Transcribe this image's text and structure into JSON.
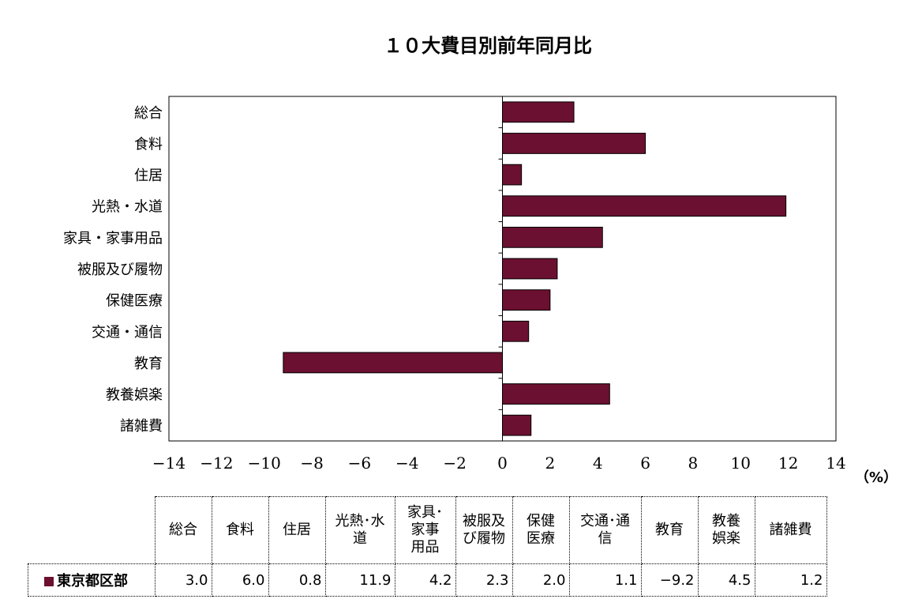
{
  "chart_data": {
    "type": "bar",
    "orientation": "horizontal",
    "title": "１０大費目別前年同月比",
    "unit": "（%）",
    "categories": [
      "総合",
      "食料",
      "住居",
      "光熱・水道",
      "家具・家事用品",
      "被服及び履物",
      "保健医療",
      "交通・通信",
      "教育",
      "教養娯楽",
      "諸雑費"
    ],
    "series": [
      {
        "name": "東京都区部",
        "values": [
          3.0,
          6.0,
          0.8,
          11.9,
          4.2,
          2.3,
          2.0,
          1.1,
          -9.2,
          4.5,
          1.2
        ]
      }
    ],
    "xlim": [
      -14,
      14
    ],
    "x_ticks": [
      "−14",
      "−12",
      "−10",
      "−8",
      "−6",
      "−4",
      "−2",
      "0",
      "2",
      "4",
      "6",
      "8",
      "10",
      "12",
      "14"
    ],
    "grid": false,
    "bar_color": "#6b1030"
  },
  "table": {
    "headers": [
      [
        "総合"
      ],
      [
        "食料"
      ],
      [
        "住居"
      ],
      [
        "光熱･水",
        "道"
      ],
      [
        "家具･",
        "家事",
        "用品"
      ],
      [
        "被服及",
        "び履物"
      ],
      [
        "保健",
        "医療"
      ],
      [
        "交通･通",
        "信"
      ],
      [
        "教育"
      ],
      [
        "教養",
        "娯楽"
      ],
      [
        "諸雑費"
      ]
    ],
    "series_label": "東京都区部",
    "values": [
      "3.0",
      "6.0",
      "0.8",
      "11.9",
      "4.2",
      "2.3",
      "2.0",
      "1.1",
      "−9.2",
      "4.5",
      "1.2"
    ]
  }
}
